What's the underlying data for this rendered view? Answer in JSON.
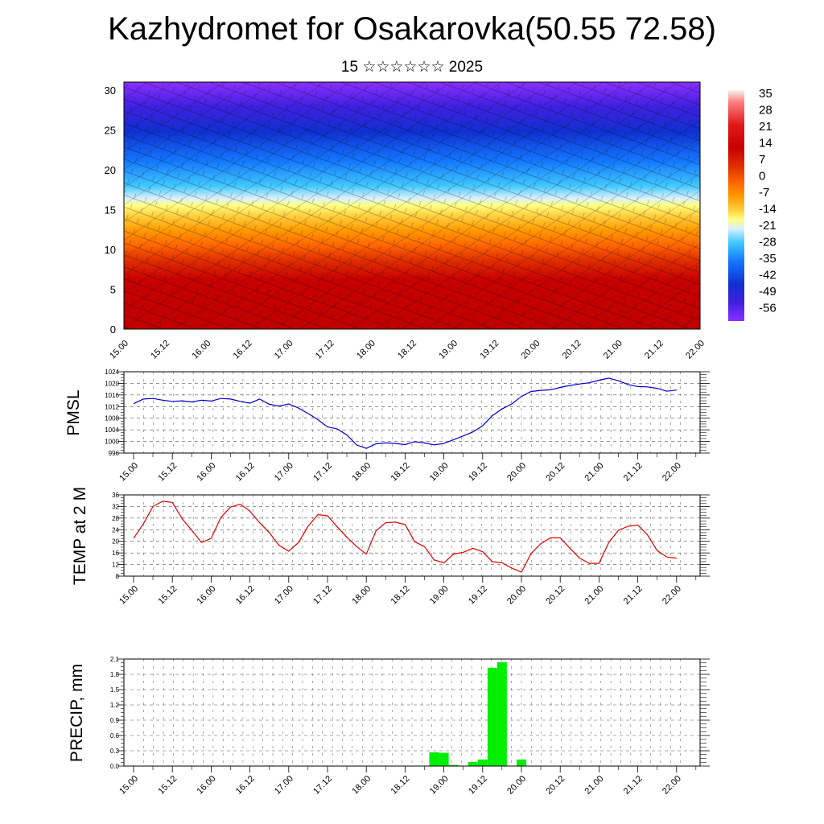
{
  "header": {
    "title": "Kazhydromet for Osakarovka(50.55 72.58)",
    "subtitle": "15 ☆☆☆☆☆☆ 2025"
  },
  "chart_data": [
    {
      "type": "heatmap",
      "title": "",
      "xlabel": "",
      "ylabel": "",
      "x_tick_labels": [
        "15.00",
        "15.12",
        "16.00",
        "16.12",
        "17.00",
        "17.12",
        "18.00",
        "18.12",
        "19.00",
        "19.12",
        "20.00",
        "20.12",
        "21.00",
        "21.12",
        "22.00"
      ],
      "xlim": [
        0,
        14
      ],
      "y_ticks": [
        0,
        5,
        10,
        15,
        20,
        25,
        30
      ],
      "ylim": [
        0,
        31
      ],
      "colorbar_labels": [
        "35",
        "28",
        "21",
        "14",
        "7",
        "0",
        "-7",
        "-14",
        "-21",
        "-28",
        "-35",
        "-42",
        "-49",
        "-56"
      ],
      "colorscale": [
        "#f4f4f4",
        "#ff8080",
        "#e01818",
        "#c80000",
        "#e03000",
        "#ff6600",
        "#ff9a00",
        "#ffd040",
        "#ffff80",
        "#d8f0ff",
        "#40c8ff",
        "#1478ff",
        "#1030d0",
        "#4020e0",
        "#8a30ff"
      ],
      "overlay": "wind barbs",
      "grid": false,
      "legend_position": "right"
    },
    {
      "type": "line",
      "ylabel": "PMSL",
      "x_tick_labels": [
        "15.00",
        "15.12",
        "16.00",
        "16.12",
        "17.00",
        "17.12",
        "18.00",
        "18.12",
        "19.00",
        "19.12",
        "20.00",
        "20.12",
        "21.00",
        "21.12",
        "22.00"
      ],
      "y_tick_labels": [
        "996",
        "1000",
        "1004",
        "1008",
        "1012",
        "1016",
        "1020",
        "1024"
      ],
      "ylim": [
        996,
        1024
      ],
      "color": "#0000cc",
      "grid": true,
      "series": [
        {
          "values": [
            1013,
            1014.6,
            1014.8,
            1014.2,
            1013.8,
            1014.0,
            1013.6,
            1014.2,
            1013.9,
            1014.8,
            1014.6,
            1013.8,
            1013.2,
            1014.6,
            1012.8,
            1012.2,
            1012.9,
            1011.5,
            1009.6,
            1007.5,
            1005.0,
            1004.3,
            1002.2,
            998.8,
            997.6,
            999.2,
            999.5,
            999.3,
            998.9,
            999.9,
            999.5,
            998.8,
            999.3,
            1000.6,
            1001.9,
            1003.3,
            1005.4,
            1008.9,
            1011.2,
            1012.9,
            1015.5,
            1017.2,
            1017.6,
            1017.8,
            1018.6,
            1019.3,
            1019.8,
            1020.2,
            1021.1,
            1021.8,
            1020.9,
            1019.6,
            1018.9,
            1018.8,
            1018.3,
            1017.3,
            1017.7
          ]
        }
      ]
    },
    {
      "type": "line",
      "ylabel": "TEMP at 2 M",
      "x_tick_labels": [
        "15.00",
        "15.12",
        "16.00",
        "16.12",
        "17.00",
        "17.12",
        "18.00",
        "18.12",
        "19.00",
        "19.12",
        "20.00",
        "20.12",
        "21.00",
        "21.12",
        "22.00"
      ],
      "y_tick_labels": [
        "8",
        "12",
        "16",
        "20",
        "24",
        "28",
        "32",
        "36"
      ],
      "ylim": [
        8,
        36
      ],
      "color": "#e00000",
      "grid": true,
      "series": [
        {
          "values": [
            21,
            26,
            32,
            33.8,
            33.4,
            27.8,
            23.8,
            19.6,
            21,
            28.2,
            31.8,
            32.8,
            30.4,
            26.4,
            23,
            18.6,
            16.6,
            19.6,
            25.2,
            29.2,
            28.8,
            25,
            21.4,
            18.2,
            15.6,
            23.6,
            26.4,
            26.6,
            25.8,
            19.8,
            18.2,
            13.6,
            12.6,
            15.6,
            16.2,
            17.6,
            16.4,
            13,
            12.6,
            10.8,
            9.4,
            15.8,
            19.2,
            21.2,
            21.2,
            17.6,
            14.2,
            12.4,
            12.4,
            19.6,
            23.8,
            25.2,
            25.6,
            22.2,
            16.8,
            14.6,
            14.2
          ]
        }
      ]
    },
    {
      "type": "bar",
      "ylabel": "PRECIP, mm",
      "x_tick_labels": [
        "15.00",
        "15.12",
        "16.00",
        "16.12",
        "17.00",
        "17.12",
        "18.00",
        "18.12",
        "19.00",
        "19.12",
        "20.00",
        "20.12",
        "21.00",
        "21.12",
        "22.00"
      ],
      "y_tick_labels": [
        "0.0",
        "0.3",
        "0.6",
        "0.9",
        "1.2",
        "1.5",
        "1.8",
        "2.1"
      ],
      "ylim": [
        0,
        2.1
      ],
      "color": "#00ee00",
      "grid": true,
      "series": [
        {
          "values": [
            0,
            0,
            0,
            0,
            0,
            0,
            0,
            0,
            0,
            0,
            0,
            0,
            0,
            0,
            0.01,
            0,
            0,
            0,
            0,
            0,
            0,
            0,
            0,
            0,
            0,
            0,
            0,
            0,
            0,
            0,
            0,
            0.27,
            0.26,
            0.02,
            0,
            0.08,
            0.13,
            1.93,
            2.04,
            0,
            0.13,
            0,
            0,
            0,
            0,
            0,
            0,
            0,
            0,
            0,
            0,
            0,
            0,
            0,
            0,
            0,
            0
          ]
        }
      ]
    }
  ]
}
